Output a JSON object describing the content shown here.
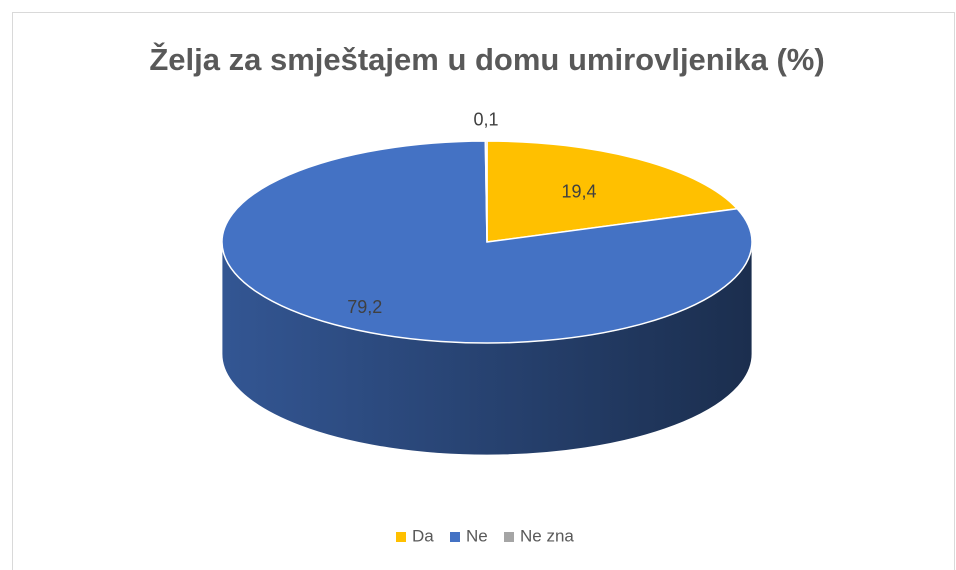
{
  "chart_data": {
    "type": "pie",
    "title": "Želja za smještajem u domu umirovljenika (%)",
    "categories": [
      "Da",
      "Ne",
      "Ne zna"
    ],
    "values": [
      19.4,
      79.2,
      0.1
    ],
    "value_labels": [
      "19,4",
      "79,2",
      "0,1"
    ],
    "colors": [
      "#FFC000",
      "#4472C4",
      "#A5A5A5"
    ],
    "legend": "bottom"
  }
}
